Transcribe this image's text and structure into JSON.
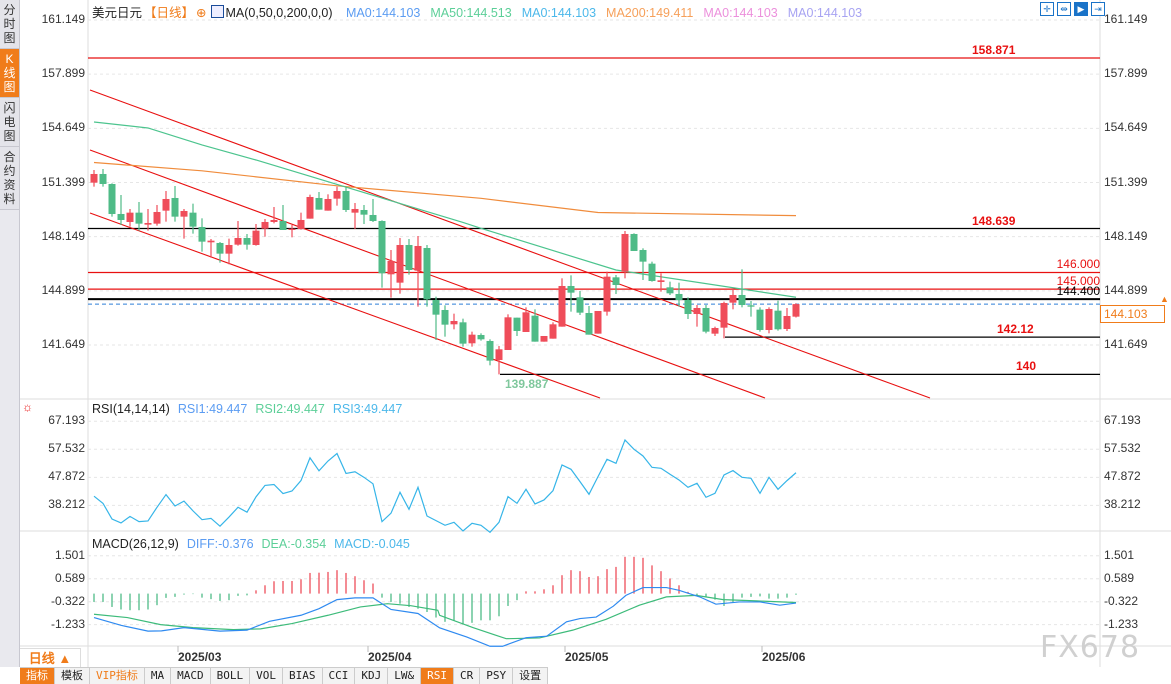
{
  "sidebar": {
    "items": [
      {
        "label": "分时图",
        "active": false
      },
      {
        "label": "K线图",
        "active": true
      },
      {
        "label": "闪电图",
        "active": false
      },
      {
        "label": "合约资料",
        "active": false
      }
    ]
  },
  "header": {
    "symbol": "美元日元",
    "period": "【日线】",
    "indicator": "MA(0,50,0,200,0,0)",
    "ma_values": [
      {
        "text": "MA0:144.103",
        "color": "#5b9cf2"
      },
      {
        "text": "MA50:144.513",
        "color": "#5ccf98"
      },
      {
        "text": "MA0:144.103",
        "color": "#4cb8ea"
      },
      {
        "text": "MA200:149.411",
        "color": "#f6a05a"
      },
      {
        "text": "MA0:144.103",
        "color": "#ec90dc"
      },
      {
        "text": "MA0:144.103",
        "color": "#a7a3f2"
      }
    ]
  },
  "toolbar": {
    "icons": [
      "crosshair-icon",
      "fit-range-icon",
      "play-cursor-icon",
      "exit-icon"
    ]
  },
  "colors": {
    "up": "#ef4d5a",
    "down": "#4fbb87",
    "ma50": "#4cc48e",
    "ma200": "#f08c3c",
    "trend": "#e81010",
    "rsi": "#36b5e8",
    "diff": "#2f8af0",
    "dea": "#3dbb7a",
    "accent": "#f07c1a",
    "current": "#2f7fd8"
  },
  "price_axis": {
    "labels": [
      "161.149",
      "157.899",
      "154.649",
      "151.399",
      "148.149",
      "144.899",
      "141.649"
    ],
    "current": "144.103"
  },
  "levels": [
    {
      "label": "158.871",
      "value": 158.871,
      "color": "#e81010",
      "bold": true
    },
    {
      "label": "148.639",
      "value": 148.639,
      "color": "#000000",
      "bold": true,
      "label_color": "#e81010"
    },
    {
      "label": "146.000",
      "value": 146.0,
      "color": "#e81010",
      "bold": false
    },
    {
      "label": "145.000",
      "value": 145.0,
      "color": "#e81010",
      "bold": false
    },
    {
      "label": "144.400",
      "value": 144.4,
      "color": "#000000",
      "bold": false
    },
    {
      "label": "142.12",
      "value": 142.12,
      "color": "#000000",
      "bold": true,
      "label_color": "#e81010"
    },
    {
      "label": "140",
      "value": 139.887,
      "color": "#000000",
      "bold": true,
      "label_color": "#e81010"
    }
  ],
  "low_marker": "139.887",
  "chart_data": [
    {
      "type": "candlestick",
      "title": "美元日元",
      "ylim": [
        139.0,
        161.149
      ],
      "x_ticks": [
        "2025/03",
        "2025/04",
        "2025/05",
        "2025/06"
      ],
      "ohlc": [
        [
          151.39,
          152.15,
          151.15,
          151.91
        ],
        [
          151.91,
          152.21,
          151.15,
          151.31
        ],
        [
          151.31,
          151.35,
          149.35,
          149.51
        ],
        [
          149.51,
          150.65,
          148.85,
          149.15
        ],
        [
          149.03,
          149.81,
          148.75,
          149.59
        ],
        [
          149.59,
          150.23,
          148.51,
          148.93
        ],
        [
          148.87,
          149.81,
          148.51,
          148.97
        ],
        [
          148.93,
          150.05,
          148.81,
          149.63
        ],
        [
          149.71,
          150.89,
          149.05,
          150.41
        ],
        [
          150.47,
          151.19,
          149.05,
          149.35
        ],
        [
          149.35,
          149.81,
          148.03,
          149.69
        ],
        [
          149.59,
          150.13,
          148.33,
          148.75
        ],
        [
          148.73,
          149.25,
          147.25,
          147.85
        ],
        [
          147.81,
          148.01,
          146.89,
          147.91
        ],
        [
          147.77,
          147.83,
          146.59,
          147.13
        ],
        [
          147.13,
          148.03,
          146.49,
          147.65
        ],
        [
          147.67,
          149.09,
          147.61,
          148.07
        ],
        [
          148.07,
          148.31,
          147.37,
          147.67
        ],
        [
          147.65,
          148.91,
          147.61,
          148.51
        ],
        [
          148.63,
          149.21,
          148.15,
          149.03
        ],
        [
          149.03,
          149.93,
          148.95,
          149.15
        ],
        [
          149.09,
          150.05,
          148.55,
          148.55
        ],
        [
          148.55,
          148.85,
          148.11,
          148.63
        ],
        [
          148.61,
          149.59,
          148.57,
          149.15
        ],
        [
          149.23,
          150.67,
          149.23,
          150.53
        ],
        [
          150.47,
          150.83,
          149.77,
          149.77
        ],
        [
          149.71,
          150.69,
          149.71,
          150.41
        ],
        [
          150.43,
          151.15,
          150.01,
          150.89
        ],
        [
          150.89,
          151.15,
          149.63,
          149.75
        ],
        [
          149.59,
          150.17,
          148.61,
          149.81
        ],
        [
          149.75,
          150.05,
          148.91,
          149.47
        ],
        [
          149.45,
          150.41,
          149.03,
          149.09
        ],
        [
          149.09,
          149.13,
          145.09,
          145.95
        ],
        [
          145.89,
          147.35,
          144.49,
          146.69
        ],
        [
          145.39,
          148.07,
          144.73,
          147.65
        ],
        [
          147.65,
          148.01,
          145.87,
          146.15
        ],
        [
          146.11,
          148.19,
          143.95,
          147.59
        ],
        [
          147.47,
          147.65,
          143.95,
          144.39
        ],
        [
          144.35,
          144.55,
          141.95,
          143.47
        ],
        [
          143.75,
          144.03,
          142.15,
          142.87
        ],
        [
          142.89,
          143.53,
          142.59,
          143.09
        ],
        [
          143.01,
          143.23,
          141.55,
          141.73
        ],
        [
          141.75,
          142.45,
          141.55,
          142.27
        ],
        [
          142.25,
          142.35,
          141.91,
          141.99
        ],
        [
          141.89,
          141.99,
          140.43,
          140.71
        ],
        [
          140.75,
          141.59,
          139.887,
          141.39
        ],
        [
          141.35,
          143.49,
          141.35,
          143.31
        ],
        [
          143.29,
          143.29,
          142.19,
          142.49
        ],
        [
          142.43,
          143.91,
          142.43,
          143.61
        ],
        [
          143.41,
          143.79,
          141.85,
          141.85
        ],
        [
          141.85,
          142.19,
          141.85,
          142.19
        ],
        [
          142.03,
          143.01,
          142.03,
          142.89
        ],
        [
          142.75,
          145.65,
          142.75,
          145.19
        ],
        [
          145.19,
          145.83,
          143.65,
          144.79
        ],
        [
          144.51,
          144.89,
          143.45,
          143.59
        ],
        [
          143.57,
          143.99,
          142.27,
          142.27
        ],
        [
          142.33,
          143.69,
          142.33,
          143.69
        ],
        [
          143.65,
          146.05,
          143.41,
          145.75
        ],
        [
          145.71,
          145.85,
          144.71,
          145.25
        ],
        [
          146.05,
          148.49,
          145.65,
          148.31
        ],
        [
          148.31,
          148.35,
          147.29,
          147.29
        ],
        [
          147.35,
          147.45,
          145.55,
          146.65
        ],
        [
          146.53,
          146.65,
          145.45,
          145.49
        ],
        [
          145.43,
          145.95,
          144.85,
          145.53
        ],
        [
          145.11,
          145.45,
          144.65,
          144.75
        ],
        [
          144.71,
          145.39,
          143.95,
          144.35
        ],
        [
          144.35,
          144.51,
          143.21,
          143.51
        ],
        [
          143.51,
          144.05,
          142.75,
          143.87
        ],
        [
          143.87,
          144.05,
          142.35,
          142.45
        ],
        [
          142.33,
          142.75,
          142.19,
          142.67
        ],
        [
          142.69,
          144.25,
          142.05,
          144.17
        ],
        [
          144.19,
          145.01,
          143.79,
          144.65
        ],
        [
          144.65,
          146.19,
          143.91,
          144.05
        ],
        [
          144.03,
          144.29,
          143.35,
          143.95
        ],
        [
          143.77,
          143.91,
          142.45,
          142.55
        ],
        [
          142.55,
          143.91,
          142.35,
          143.81
        ],
        [
          143.71,
          144.31,
          142.51,
          142.59
        ],
        [
          142.61,
          143.87,
          142.49,
          143.39
        ],
        [
          143.35,
          144.15,
          143.3,
          144.103
        ]
      ],
      "series": [
        {
          "name": "MA50",
          "points": [
            [
              0,
              155.03
            ],
            [
              6,
              154.67
            ],
            [
              12,
              153.65
            ],
            [
              18,
              152.75
            ],
            [
              41,
              149.0
            ],
            [
              43,
              148.65
            ],
            [
              58,
              146.15
            ],
            [
              78,
              144.513
            ]
          ]
        },
        {
          "name": "MA200",
          "points": [
            [
              0,
              152.6
            ],
            [
              12,
              152.1
            ],
            [
              27,
              151.2
            ],
            [
              43,
              150.45
            ],
            [
              56,
              149.6
            ],
            [
              78,
              149.411
            ]
          ]
        }
      ]
    },
    {
      "type": "line",
      "title": "RSI(14,14,14)",
      "ylim": [
        28,
        67.193
      ],
      "y_ticks": [
        "67.193",
        "57.532",
        "47.872",
        "38.212"
      ],
      "legend": [
        {
          "text": "RSI1:49.447",
          "color": "#5b9cf2"
        },
        {
          "text": "RSI2:49.447",
          "color": "#5ccf98"
        },
        {
          "text": "RSI3:49.447",
          "color": "#4cb8ea"
        }
      ],
      "values": [
        41.36,
        38.89,
        33.49,
        32.14,
        34.39,
        32.59,
        32.82,
        37.54,
        41.92,
        37.99,
        39.67,
        36.3,
        33.27,
        33.72,
        31.02,
        34.17,
        37.54,
        35.85,
        41.13,
        45.07,
        45.4,
        42.26,
        43.16,
        46.75,
        54.62,
        50.12,
        53.49,
        56.08,
        49.22,
        49.78,
        47.87,
        45.63,
        32.59,
        35.5,
        42.7,
        36.84,
        44.43,
        34.54,
        32.93,
        31.33,
        32.36,
        29.37,
        32.01,
        31.33,
        28.91,
        32.36,
        41.21,
        38.91,
        43.74,
        38.68,
        40.06,
        43.28,
        52.13,
        50.64,
        46.38,
        42.02,
        48.11,
        54.08,
        52.71,
        60.75,
        57.53,
        55.23,
        51.32,
        50.98,
        48.91,
        46.96,
        44.43,
        45.81,
        40.98,
        42.36,
        48.68,
        50.18,
        47.88,
        47.53,
        42.36,
        47.88,
        43.74,
        46.73,
        49.447
      ]
    },
    {
      "type": "bar+line",
      "title": "MACD(26,12,9)",
      "ylim": [
        -2.2,
        1.6
      ],
      "y_ticks": [
        "1.501",
        "0.589",
        "-0.322",
        "-1.233"
      ],
      "legend": [
        {
          "text": "DIFF:-0.376",
          "color": "#5b9cf2"
        },
        {
          "text": "DEA:-0.354",
          "color": "#5ccf98"
        },
        {
          "text": "MACD:-0.045",
          "color": "#4cb8ea"
        }
      ],
      "macd": [
        -0.33,
        -0.33,
        -0.53,
        -0.63,
        -0.66,
        -0.66,
        -0.63,
        -0.46,
        -0.17,
        -0.13,
        -0.04,
        -0.02,
        -0.16,
        -0.22,
        -0.29,
        -0.26,
        -0.09,
        -0.07,
        0.13,
        0.33,
        0.49,
        0.5,
        0.5,
        0.57,
        0.82,
        0.83,
        0.86,
        0.93,
        0.82,
        0.69,
        0.53,
        0.4,
        -0.16,
        -0.33,
        -0.4,
        -0.53,
        -0.6,
        -0.73,
        -0.95,
        -1.12,
        -1.08,
        -1.22,
        -1.16,
        -1.06,
        -1.06,
        -0.9,
        -0.49,
        -0.26,
        0.09,
        0.09,
        0.17,
        0.33,
        0.73,
        0.93,
        0.89,
        0.66,
        0.69,
        0.97,
        1.06,
        1.46,
        1.46,
        1.42,
        1.12,
        0.89,
        0.6,
        0.33,
        0.07,
        -0.07,
        -0.13,
        -0.24,
        -0.49,
        -0.33,
        -0.16,
        -0.13,
        -0.11,
        -0.2,
        -0.2,
        -0.16,
        -0.045
      ],
      "diff": [
        [
          0,
          -0.95
        ],
        [
          3,
          -1.26
        ],
        [
          6,
          -1.49
        ],
        [
          7.5,
          -1.48
        ],
        [
          10,
          -1.35
        ],
        [
          14,
          -1.49
        ],
        [
          17,
          -1.45
        ],
        [
          19.5,
          -1.1
        ],
        [
          23,
          -0.86
        ],
        [
          25,
          -0.6
        ],
        [
          27,
          -0.24
        ],
        [
          29,
          -0.17
        ],
        [
          31,
          -0.17
        ],
        [
          33,
          -0.63
        ],
        [
          36,
          -0.79
        ],
        [
          38.4,
          -1.36
        ],
        [
          41.4,
          -1.72
        ],
        [
          44,
          -2.09
        ],
        [
          45.4,
          -2.09
        ],
        [
          48,
          -1.75
        ],
        [
          50.3,
          -1.69
        ],
        [
          52.5,
          -1.12
        ],
        [
          54,
          -0.99
        ],
        [
          55.8,
          -0.93
        ],
        [
          57.7,
          -0.5
        ],
        [
          59.1,
          -0.07
        ],
        [
          61,
          0.24
        ],
        [
          63.6,
          0.24
        ],
        [
          65,
          0.13
        ],
        [
          67.3,
          -0.13
        ],
        [
          69.1,
          -0.42
        ],
        [
          71.7,
          -0.33
        ],
        [
          74,
          -0.33
        ],
        [
          76.2,
          -0.46
        ],
        [
          78,
          -0.376
        ]
      ],
      "dea": [
        [
          0,
          -0.82
        ],
        [
          3.7,
          -0.95
        ],
        [
          7.4,
          -1.23
        ],
        [
          11,
          -1.35
        ],
        [
          15.5,
          -1.43
        ],
        [
          18.5,
          -1.4
        ],
        [
          22,
          -1.19
        ],
        [
          26,
          -0.86
        ],
        [
          29.6,
          -0.53
        ],
        [
          32.6,
          -0.4
        ],
        [
          35.2,
          -0.48
        ],
        [
          38.2,
          -0.66
        ],
        [
          38.4,
          -0.86
        ],
        [
          42.1,
          -1.35
        ],
        [
          45.8,
          -1.79
        ],
        [
          49.5,
          -1.76
        ],
        [
          53.2,
          -1.45
        ],
        [
          56.9,
          -1.02
        ],
        [
          60.6,
          -0.46
        ],
        [
          63.6,
          -0.13
        ],
        [
          66.9,
          -0.07
        ],
        [
          69.9,
          -0.24
        ],
        [
          73.6,
          -0.29
        ],
        [
          78,
          -0.354
        ]
      ]
    }
  ],
  "bottom": {
    "period_button": "日线 ▲",
    "tabs": [
      {
        "label": "指标",
        "style": "active"
      },
      {
        "label": "模板",
        "style": ""
      },
      {
        "label": "VIP指标",
        "style": "vip"
      },
      {
        "label": "MA",
        "style": ""
      },
      {
        "label": "MACD",
        "style": ""
      },
      {
        "label": "BOLL",
        "style": ""
      },
      {
        "label": "VOL",
        "style": ""
      },
      {
        "label": "BIAS",
        "style": ""
      },
      {
        "label": "CCI",
        "style": ""
      },
      {
        "label": "KDJ",
        "style": ""
      },
      {
        "label": "LW&",
        "style": ""
      },
      {
        "label": "RSI",
        "style": "active"
      },
      {
        "label": "CR",
        "style": ""
      },
      {
        "label": "PSY",
        "style": ""
      },
      {
        "label": "设置",
        "style": ""
      }
    ]
  },
  "watermark": "FX678"
}
